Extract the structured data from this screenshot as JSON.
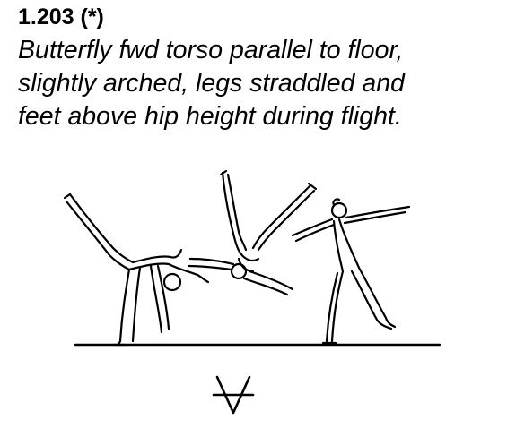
{
  "element": {
    "code": "1.203 (*)",
    "description_lines": [
      "Butterfly fwd torso parallel to floor,",
      "slightly arched, legs straddled and",
      "feet above hip height during flight."
    ]
  },
  "illustration": {
    "figures": [
      "takeoff-figure",
      "flight-figure",
      "landing-figure"
    ],
    "symbol": "∀-struck-symbol"
  }
}
